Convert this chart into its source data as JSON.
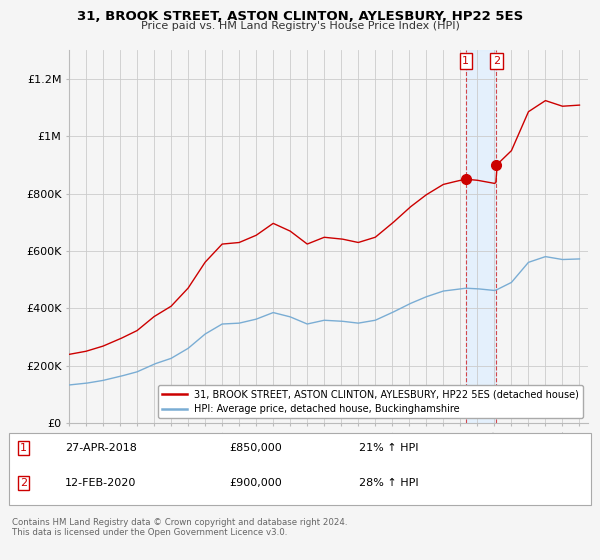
{
  "title": "31, BROOK STREET, ASTON CLINTON, AYLESBURY, HP22 5ES",
  "subtitle": "Price paid vs. HM Land Registry's House Price Index (HPI)",
  "legend_line1": "31, BROOK STREET, ASTON CLINTON, AYLESBURY, HP22 5ES (detached house)",
  "legend_line2": "HPI: Average price, detached house, Buckinghamshire",
  "footnote": "Contains HM Land Registry data © Crown copyright and database right 2024.\nThis data is licensed under the Open Government Licence v3.0.",
  "sale1_date": "27-APR-2018",
  "sale1_price": "£850,000",
  "sale1_hpi": "21% ↑ HPI",
  "sale2_date": "12-FEB-2020",
  "sale2_price": "£900,000",
  "sale2_hpi": "28% ↑ HPI",
  "red_color": "#cc0000",
  "blue_color": "#7aadd4",
  "shade_color": "#ddeeff",
  "background_color": "#f5f5f5",
  "grid_color": "#cccccc",
  "sale1_x": 2018.32,
  "sale1_y": 850000,
  "sale2_x": 2020.12,
  "sale2_y": 900000,
  "ylim": [
    0,
    1300000
  ],
  "xlim": [
    1995,
    2025.5
  ],
  "ylabel_ticks": [
    0,
    200000,
    400000,
    600000,
    800000,
    1000000,
    1200000
  ],
  "ylabel_labels": [
    "£0",
    "£200K",
    "£400K",
    "£600K",
    "£800K",
    "£1M",
    "£1.2M"
  ]
}
